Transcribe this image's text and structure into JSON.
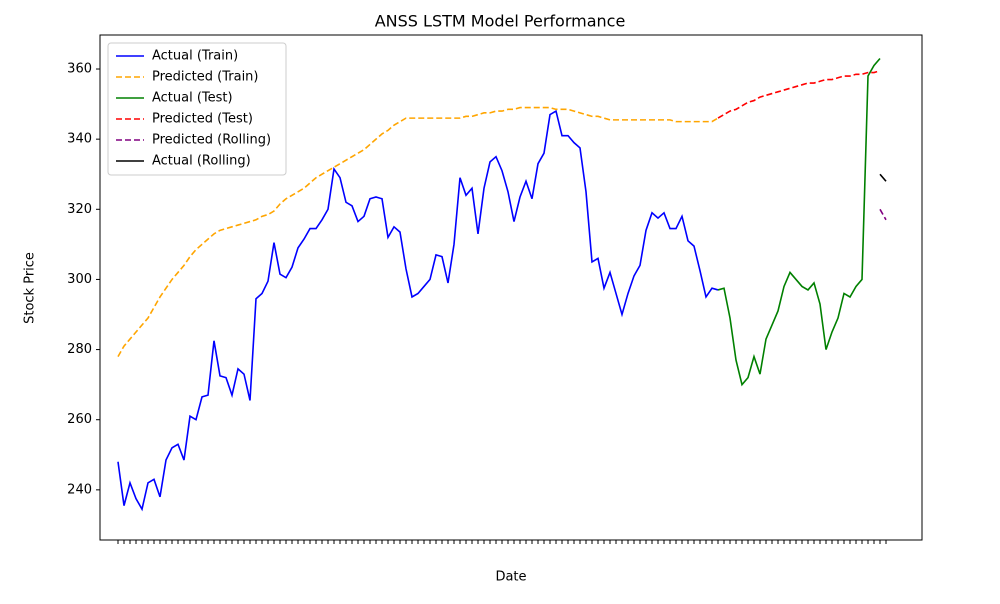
{
  "chart_data": {
    "type": "line",
    "title": "ANSS LSTM Model Performance",
    "x_label": "Date",
    "y_label": "Stock Price",
    "categories": [
      null,
      null,
      null,
      null,
      null,
      null,
      null,
      null,
      null,
      null,
      null,
      null,
      null,
      null,
      null,
      null,
      null,
      null,
      null,
      null,
      null,
      null,
      null,
      null,
      null,
      null,
      null,
      null,
      null,
      null,
      null,
      null,
      null,
      null,
      null,
      null,
      null,
      null,
      null,
      null,
      null,
      null,
      null,
      null,
      null,
      null,
      null,
      null,
      null,
      null,
      null,
      null,
      null,
      null,
      null,
      null,
      null,
      null,
      null,
      null,
      null,
      null,
      null,
      null,
      null,
      null,
      null,
      null,
      null,
      null,
      null,
      null,
      null,
      null,
      null,
      null,
      null,
      null,
      null,
      null,
      null,
      null,
      null,
      null,
      null,
      null,
      null,
      null,
      null,
      null,
      null,
      null,
      null,
      null,
      null,
      null,
      null,
      null,
      null,
      null,
      null,
      null,
      null,
      null,
      null,
      null,
      null,
      null,
      null,
      null,
      null,
      null,
      null,
      null,
      null,
      null,
      null,
      null,
      null,
      null,
      null,
      null,
      null,
      null,
      null,
      null,
      null,
      null,
      null
    ],
    "ylim": [
      225.7,
      369.7
    ],
    "yticks": [
      240,
      260,
      280,
      300,
      320,
      340,
      360
    ],
    "grid": false,
    "legend": "upper left",
    "series": [
      {
        "name": "Actual (Train)",
        "color": "#0000ff",
        "linestyle": "solid",
        "values": [
          248,
          235.5,
          242,
          237.5,
          234.5,
          242,
          243,
          238,
          248.5,
          252,
          253,
          248.5,
          261,
          260,
          266.5,
          267,
          282.5,
          272.5,
          272,
          267,
          274.5,
          273,
          265.5,
          294.5,
          296,
          299.5,
          310.5,
          301.5,
          300.5,
          303.5,
          309,
          311.5,
          314.5,
          314.5,
          317,
          320,
          331.5,
          329,
          322,
          321,
          316.5,
          318,
          323,
          323.5,
          323,
          312,
          315,
          313.5,
          303,
          295,
          296,
          298,
          300,
          307,
          306.5,
          299,
          310,
          329,
          324,
          326,
          313,
          326,
          333.5,
          335,
          331,
          325,
          316.5,
          323.5,
          328,
          323,
          333,
          336,
          347,
          348,
          341,
          341,
          339,
          337.5,
          325,
          305,
          306,
          297.5,
          302,
          296,
          290,
          296,
          301,
          304,
          314,
          319,
          317.5,
          319,
          314.5,
          314.5,
          318,
          311,
          309.5,
          302.5,
          295,
          297.5,
          297,
          null,
          null,
          null,
          null,
          null,
          null,
          null,
          null,
          null,
          null,
          null,
          null,
          null,
          null,
          null,
          null,
          null,
          null,
          null,
          null,
          null,
          null,
          null,
          null,
          null,
          null,
          null,
          null
        ]
      },
      {
        "name": "Predicted (Train)",
        "color": "#ffa500",
        "linestyle": "dashed",
        "values": [
          278,
          281,
          283,
          285,
          287,
          289,
          292,
          295,
          297.5,
          300,
          302,
          304,
          306.5,
          308.5,
          310,
          311.5,
          313,
          314,
          314.5,
          315,
          315.5,
          316,
          316.5,
          317,
          318,
          318.5,
          319.5,
          321.5,
          323,
          324,
          325,
          326,
          327.5,
          329,
          330,
          331,
          332,
          333,
          334,
          335,
          336,
          337,
          338.5,
          340,
          341.5,
          342.5,
          344,
          345,
          346,
          346,
          346,
          346,
          346,
          346,
          346,
          346,
          346,
          346,
          346.5,
          346.5,
          347,
          347.5,
          347.5,
          348,
          348,
          348.5,
          348.5,
          349,
          349,
          349,
          349,
          349,
          349,
          348.5,
          348.5,
          348.5,
          348,
          347.5,
          347,
          346.5,
          346.5,
          346,
          345.5,
          345.5,
          345.5,
          345.5,
          345.5,
          345.5,
          345.5,
          345.5,
          345.5,
          345.5,
          345.5,
          345,
          345,
          345,
          345,
          345,
          345,
          345,
          346,
          null,
          null,
          null,
          null,
          null,
          null,
          null,
          null,
          null,
          null,
          null,
          null,
          null,
          null,
          null,
          null,
          null,
          null,
          null,
          null,
          null,
          null,
          null,
          null,
          null,
          null,
          null,
          null
        ]
      },
      {
        "name": "Actual (Test)",
        "color": "#008000",
        "linestyle": "solid",
        "values": [
          null,
          null,
          null,
          null,
          null,
          null,
          null,
          null,
          null,
          null,
          null,
          null,
          null,
          null,
          null,
          null,
          null,
          null,
          null,
          null,
          null,
          null,
          null,
          null,
          null,
          null,
          null,
          null,
          null,
          null,
          null,
          null,
          null,
          null,
          null,
          null,
          null,
          null,
          null,
          null,
          null,
          null,
          null,
          null,
          null,
          null,
          null,
          null,
          null,
          null,
          null,
          null,
          null,
          null,
          null,
          null,
          null,
          null,
          null,
          null,
          null,
          null,
          null,
          null,
          null,
          null,
          null,
          null,
          null,
          null,
          null,
          null,
          null,
          null,
          null,
          null,
          null,
          null,
          null,
          null,
          null,
          null,
          null,
          null,
          null,
          null,
          null,
          null,
          null,
          null,
          null,
          null,
          null,
          null,
          null,
          null,
          null,
          null,
          null,
          null,
          297,
          297.5,
          289,
          277,
          270,
          272,
          278,
          273,
          283,
          287,
          291,
          298,
          302,
          300,
          298,
          297,
          299,
          293,
          280,
          285,
          289,
          296,
          295,
          298,
          300,
          358,
          361,
          363,
          null
        ]
      },
      {
        "name": "Predicted (Test)",
        "color": "#ff0000",
        "linestyle": "dashed",
        "values": [
          null,
          null,
          null,
          null,
          null,
          null,
          null,
          null,
          null,
          null,
          null,
          null,
          null,
          null,
          null,
          null,
          null,
          null,
          null,
          null,
          null,
          null,
          null,
          null,
          null,
          null,
          null,
          null,
          null,
          null,
          null,
          null,
          null,
          null,
          null,
          null,
          null,
          null,
          null,
          null,
          null,
          null,
          null,
          null,
          null,
          null,
          null,
          null,
          null,
          null,
          null,
          null,
          null,
          null,
          null,
          null,
          null,
          null,
          null,
          null,
          null,
          null,
          null,
          null,
          null,
          null,
          null,
          null,
          null,
          null,
          null,
          null,
          null,
          null,
          null,
          null,
          null,
          null,
          null,
          null,
          null,
          null,
          null,
          null,
          null,
          null,
          null,
          null,
          null,
          null,
          null,
          null,
          null,
          null,
          null,
          null,
          null,
          null,
          null,
          null,
          346,
          347,
          348,
          348.5,
          349.5,
          350.5,
          351,
          352,
          352.5,
          353,
          353.5,
          354,
          354.5,
          355,
          355.5,
          356,
          356,
          356.5,
          357,
          357,
          357.5,
          358,
          358,
          358.5,
          358.5,
          359,
          359,
          359.5,
          null
        ]
      },
      {
        "name": "Predicted (Rolling)",
        "color": "#800080",
        "linestyle": "dashed",
        "values": [
          null,
          null,
          null,
          null,
          null,
          null,
          null,
          null,
          null,
          null,
          null,
          null,
          null,
          null,
          null,
          null,
          null,
          null,
          null,
          null,
          null,
          null,
          null,
          null,
          null,
          null,
          null,
          null,
          null,
          null,
          null,
          null,
          null,
          null,
          null,
          null,
          null,
          null,
          null,
          null,
          null,
          null,
          null,
          null,
          null,
          null,
          null,
          null,
          null,
          null,
          null,
          null,
          null,
          null,
          null,
          null,
          null,
          null,
          null,
          null,
          null,
          null,
          null,
          null,
          null,
          null,
          null,
          null,
          null,
          null,
          null,
          null,
          null,
          null,
          null,
          null,
          null,
          null,
          null,
          null,
          null,
          null,
          null,
          null,
          null,
          null,
          null,
          null,
          null,
          null,
          null,
          null,
          null,
          null,
          null,
          null,
          null,
          null,
          null,
          null,
          null,
          null,
          null,
          null,
          null,
          null,
          null,
          null,
          null,
          null,
          null,
          null,
          null,
          null,
          null,
          null,
          null,
          null,
          null,
          null,
          null,
          null,
          null,
          null,
          null,
          null,
          null,
          320,
          317
        ]
      },
      {
        "name": "Actual (Rolling)",
        "color": "#000000",
        "linestyle": "solid",
        "values": [
          null,
          null,
          null,
          null,
          null,
          null,
          null,
          null,
          null,
          null,
          null,
          null,
          null,
          null,
          null,
          null,
          null,
          null,
          null,
          null,
          null,
          null,
          null,
          null,
          null,
          null,
          null,
          null,
          null,
          null,
          null,
          null,
          null,
          null,
          null,
          null,
          null,
          null,
          null,
          null,
          null,
          null,
          null,
          null,
          null,
          null,
          null,
          null,
          null,
          null,
          null,
          null,
          null,
          null,
          null,
          null,
          null,
          null,
          null,
          null,
          null,
          null,
          null,
          null,
          null,
          null,
          null,
          null,
          null,
          null,
          null,
          null,
          null,
          null,
          null,
          null,
          null,
          null,
          null,
          null,
          null,
          null,
          null,
          null,
          null,
          null,
          null,
          null,
          null,
          null,
          null,
          null,
          null,
          null,
          null,
          null,
          null,
          null,
          null,
          null,
          null,
          null,
          null,
          null,
          null,
          null,
          null,
          null,
          null,
          null,
          null,
          null,
          null,
          null,
          null,
          null,
          null,
          null,
          null,
          null,
          null,
          null,
          null,
          null,
          null,
          null,
          null,
          330,
          328
        ]
      }
    ]
  }
}
